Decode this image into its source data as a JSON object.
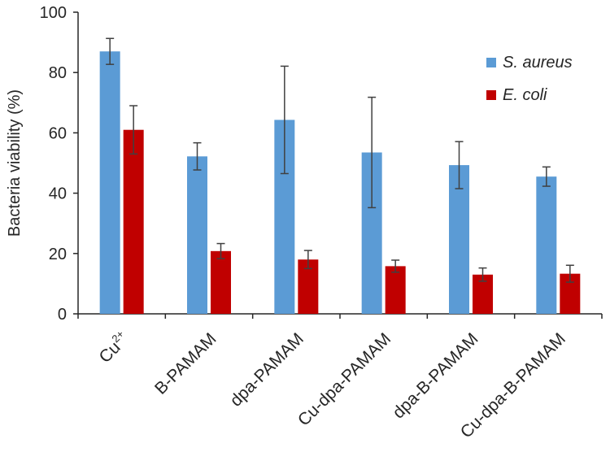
{
  "chart_data": {
    "type": "bar",
    "title": "",
    "xlabel": "",
    "ylabel": "Bacteria viability (%)",
    "ylim": [
      0,
      100
    ],
    "yticks": [
      0,
      20,
      40,
      60,
      80,
      100
    ],
    "grid": false,
    "legend_position": "top-right",
    "categories": [
      {
        "label": "Cu",
        "superscript": "2+"
      },
      {
        "label": "B-PAMAM",
        "superscript": ""
      },
      {
        "label": "dpa-PAMAM",
        "superscript": ""
      },
      {
        "label": "Cu-dpa-PAMAM",
        "superscript": ""
      },
      {
        "label": "dpa-B-PAMAM",
        "superscript": ""
      },
      {
        "label": "Cu-dpa-B-PAMAM",
        "superscript": ""
      }
    ],
    "series": [
      {
        "name": "S. aureus",
        "color": "#5b9bd5",
        "values": [
          87,
          52.2,
          64.3,
          53.5,
          49.3,
          45.5
        ],
        "errors": [
          4.3,
          4.5,
          17.8,
          18.3,
          7.8,
          3.2
        ]
      },
      {
        "name": "E. coli",
        "color": "#c00000",
        "values": [
          61,
          20.8,
          18,
          15.8,
          13,
          13.3
        ],
        "errors": [
          8,
          2.5,
          3,
          2,
          2.2,
          2.8
        ]
      }
    ],
    "error_bar_color": "#404040",
    "axis_color": "#262626"
  }
}
